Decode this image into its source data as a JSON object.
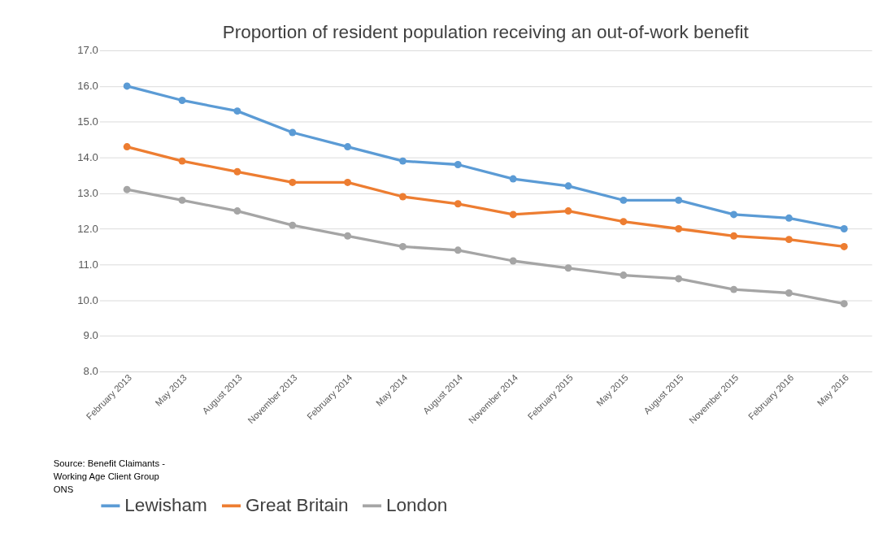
{
  "chart_data": {
    "type": "line",
    "title": "Proportion of resident population receiving an out-of-work benefit",
    "categories": [
      "February 2013",
      "May 2013",
      "August 2013",
      "November 2013",
      "February 2014",
      "May 2014",
      "August 2014",
      "November 2014",
      "February 2015",
      "May 2015",
      "August 2015",
      "November 2015",
      "February 2016",
      "May 2016"
    ],
    "series": [
      {
        "name": "Lewisham",
        "color": "#5b9bd5",
        "values": [
          16.0,
          15.6,
          15.3,
          14.7,
          14.3,
          13.9,
          13.8,
          13.4,
          13.2,
          12.8,
          12.8,
          12.4,
          12.3,
          12.0
        ]
      },
      {
        "name": "Great Britain",
        "color": "#ed7d31",
        "values": [
          14.3,
          13.9,
          13.6,
          13.3,
          13.3,
          12.9,
          12.7,
          12.4,
          12.5,
          12.2,
          12.0,
          11.8,
          11.7,
          11.5
        ]
      },
      {
        "name": "London",
        "color": "#a5a5a5",
        "values": [
          13.1,
          12.8,
          12.5,
          12.1,
          11.8,
          11.5,
          11.4,
          11.1,
          10.9,
          10.7,
          10.6,
          10.3,
          10.2,
          9.9
        ]
      }
    ],
    "ylim": [
      8,
      17
    ],
    "yticks": [
      {
        "value": 8,
        "label": "8.0"
      },
      {
        "value": 9,
        "label": "9.0"
      },
      {
        "value": 10,
        "label": "10.0"
      },
      {
        "value": 11,
        "label": "11.0"
      },
      {
        "value": 12,
        "label": "12.0"
      },
      {
        "value": 13,
        "label": "13.0"
      },
      {
        "value": 14,
        "label": "14.0"
      },
      {
        "value": 15,
        "label": "15.0"
      },
      {
        "value": 16,
        "label": "16.0"
      },
      {
        "value": 17,
        "label": "17.0"
      }
    ],
    "grid": "y",
    "legend": "bottom",
    "marker": "circle",
    "line_style": "solid",
    "annotations": [
      "Source: Benefit Claimants -\nWorking Age Client Group\nONS"
    ]
  }
}
